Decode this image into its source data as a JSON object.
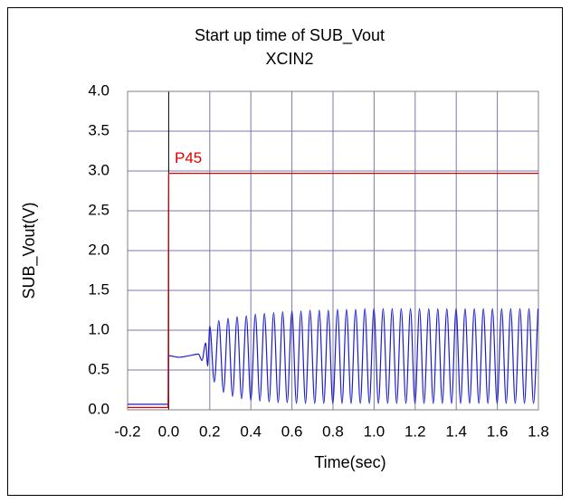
{
  "chart_data": {
    "type": "line",
    "title": "Start up time of SUB_Vout",
    "subtitle": "XCIN2",
    "x_label": "Time(sec)",
    "y_label": "SUB_Vout(V)",
    "xlim": [
      -0.2,
      1.8
    ],
    "ylim": [
      0,
      4
    ],
    "xticks": [
      -0.2,
      {
        "value": 0,
        "label": "0.0"
      },
      0.2,
      0.4,
      0.6,
      0.8,
      {
        "value": 1,
        "label": "1.0"
      },
      1.2,
      1.4,
      1.6,
      1.8
    ],
    "yticks": [
      {
        "value": 0,
        "label": "0.0"
      },
      0.5,
      {
        "value": 1,
        "label": "1.0"
      },
      1.5,
      {
        "value": 2,
        "label": "2.0"
      },
      2.5,
      {
        "value": 3,
        "label": "3.0"
      },
      3.5,
      {
        "value": 4,
        "label": "4.0"
      }
    ],
    "grid": true,
    "series": [
      {
        "color": "#1c1cc8",
        "x": [
          -0.2,
          -0.002,
          0.0,
          0.05,
          0.1,
          0.145,
          0.162,
          0.18,
          0.19,
          0.2,
          0.222,
          0.244,
          0.267,
          0.289,
          0.311,
          0.333,
          0.355,
          0.378,
          0.4,
          0.422,
          0.444,
          0.466,
          0.489,
          0.511,
          0.533,
          0.555,
          0.577,
          0.6,
          0.622,
          0.644,
          0.666,
          0.688,
          0.711,
          0.733,
          0.755,
          0.777,
          0.799,
          0.822,
          0.844,
          0.866,
          0.888,
          0.91,
          0.933,
          0.955,
          0.977,
          0.999,
          1.021,
          1.044,
          1.066,
          1.088,
          1.11,
          1.132,
          1.155,
          1.177,
          1.199,
          1.221,
          1.243,
          1.266,
          1.288,
          1.31,
          1.332,
          1.354,
          1.377,
          1.399,
          1.421,
          1.443,
          1.465,
          1.488,
          1.51,
          1.532,
          1.554,
          1.576,
          1.599,
          1.621,
          1.643,
          1.665,
          1.687,
          1.71,
          1.732,
          1.754,
          1.776,
          1.798
        ],
        "values": [
          0.07,
          0.07,
          0.68,
          0.66,
          0.68,
          0.7,
          0.62,
          0.84,
          0.55,
          1.05,
          0.35,
          1.12,
          0.22,
          1.15,
          0.17,
          1.17,
          0.14,
          1.18,
          0.12,
          1.2,
          0.11,
          1.21,
          0.1,
          1.22,
          0.09,
          1.23,
          0.09,
          1.24,
          0.08,
          1.24,
          0.08,
          1.25,
          0.08,
          1.25,
          0.08,
          1.25,
          0.08,
          1.26,
          0.08,
          1.26,
          0.08,
          1.26,
          0.08,
          1.27,
          0.08,
          1.27,
          0.08,
          1.27,
          0.08,
          1.27,
          0.08,
          1.27,
          0.08,
          1.27,
          0.08,
          1.27,
          0.08,
          1.27,
          0.08,
          1.27,
          0.08,
          1.27,
          0.08,
          1.27,
          0.08,
          1.27,
          0.08,
          1.27,
          0.08,
          1.27,
          0.08,
          1.27,
          0.08,
          1.27,
          0.08,
          1.27,
          0.08,
          1.27,
          0.08,
          1.27,
          0.08,
          1.27
        ]
      },
      {
        "name": "P45",
        "color": "#e00000",
        "x": [
          -0.2,
          -0.003,
          0.0,
          1.8
        ],
        "values": [
          0.03,
          0.03,
          2.97,
          2.97
        ]
      }
    ]
  }
}
